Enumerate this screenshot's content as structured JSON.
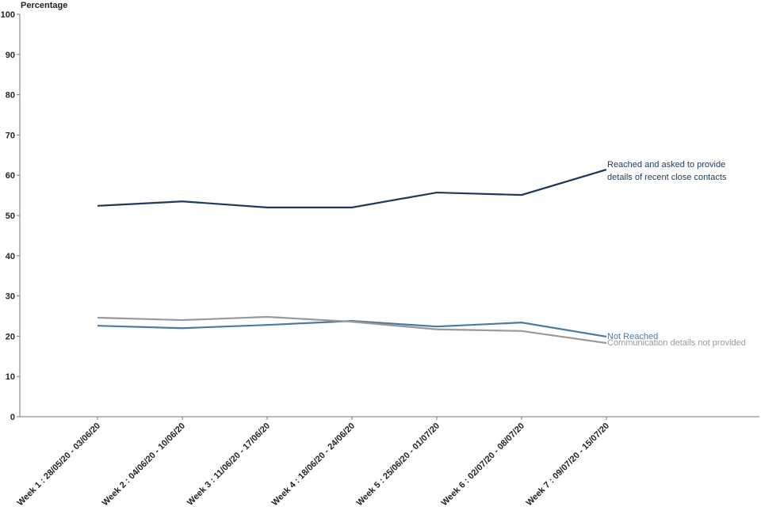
{
  "chart_data": {
    "type": "line",
    "y_label": "Percentage",
    "categories": [
      "Week 1 : 28/05/20 - 03/06/20",
      "Week 2 : 04/06/20 - 10/06/20",
      "Week 3 : 11/06/20 - 17/06/20",
      "Week 4 : 18/06/20 - 24/06/20",
      "Week 5 : 25/06/20 - 01/07/20",
      "Week 6 : 02/07/20 - 08/07/20",
      "Week 7 : 09/07/20 - 15/07/20"
    ],
    "series": [
      {
        "name": "Reached and asked to provide details of recent close contacts",
        "color": "#1d3a5c",
        "values": [
          52.4,
          53.5,
          52.0,
          52.0,
          55.7,
          55.1,
          61.4
        ]
      },
      {
        "name": "Not Reached",
        "color": "#4a7aa0",
        "values": [
          22.6,
          22.0,
          22.8,
          23.8,
          22.4,
          23.4,
          19.9
        ]
      },
      {
        "name": "Communication details not provided",
        "color": "#999999",
        "values": [
          24.6,
          24.0,
          24.8,
          23.6,
          21.7,
          21.3,
          18.3
        ]
      }
    ],
    "ylim": [
      0,
      100
    ],
    "yticks": [
      0,
      10,
      20,
      30,
      40,
      50,
      60,
      70,
      80,
      90,
      100
    ]
  }
}
